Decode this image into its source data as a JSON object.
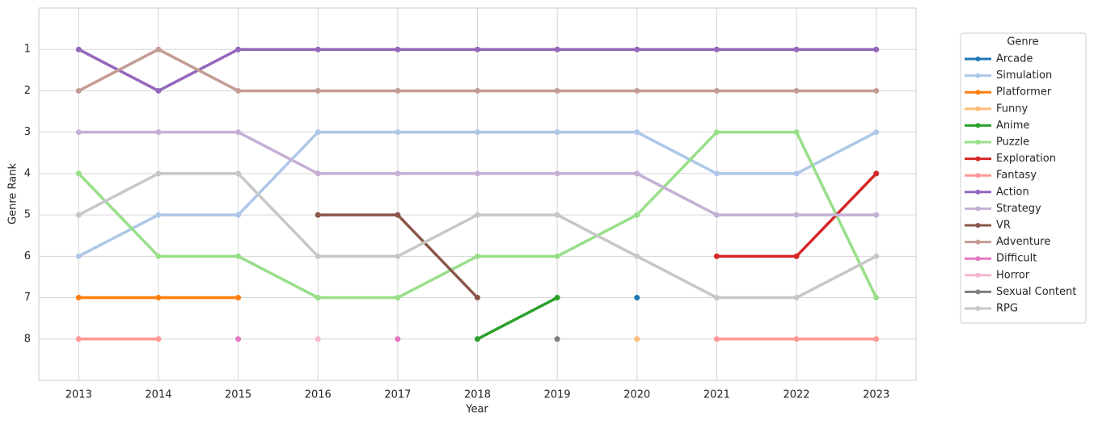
{
  "chart_data": {
    "type": "line",
    "xlabel": "Year",
    "ylabel": "Genre Rank",
    "legend_title": "Genre",
    "legend": "outside right",
    "grid": true,
    "x": [
      2013,
      2014,
      2015,
      2016,
      2017,
      2018,
      2019,
      2020,
      2021,
      2022,
      2023
    ],
    "xlim": [
      2012.5,
      2023.5
    ],
    "xticks": [
      2013,
      2014,
      2015,
      2016,
      2017,
      2018,
      2019,
      2020,
      2021,
      2022,
      2023
    ],
    "ylim": [
      9,
      0
    ],
    "yticks": [
      1,
      2,
      3,
      4,
      5,
      6,
      7,
      8
    ],
    "series": [
      {
        "name": "Arcade",
        "color": "#1f77b4",
        "values": [
          null,
          null,
          null,
          null,
          null,
          null,
          null,
          7,
          null,
          null,
          null
        ]
      },
      {
        "name": "Simulation",
        "color": "#aec7e8",
        "values": [
          6,
          5,
          5,
          3,
          3,
          3,
          3,
          3,
          4,
          4,
          3
        ]
      },
      {
        "name": "Platformer",
        "color": "#ff7f0e",
        "values": [
          7,
          7,
          7,
          null,
          null,
          null,
          null,
          null,
          null,
          null,
          null
        ]
      },
      {
        "name": "Funny",
        "color": "#ffbb78",
        "values": [
          null,
          null,
          null,
          null,
          null,
          null,
          null,
          8,
          null,
          null,
          null
        ]
      },
      {
        "name": "Anime",
        "color": "#2ca02c",
        "values": [
          null,
          null,
          null,
          null,
          null,
          8,
          7,
          null,
          null,
          null,
          null
        ]
      },
      {
        "name": "Puzzle",
        "color": "#98df8a",
        "values": [
          4,
          6,
          6,
          7,
          7,
          6,
          6,
          5,
          3,
          3,
          7
        ]
      },
      {
        "name": "Exploration",
        "color": "#d62728",
        "values": [
          null,
          null,
          null,
          null,
          null,
          null,
          null,
          null,
          6,
          6,
          4
        ]
      },
      {
        "name": "Fantasy",
        "color": "#ff9896",
        "values": [
          8,
          8,
          null,
          null,
          null,
          null,
          null,
          null,
          8,
          8,
          8
        ]
      },
      {
        "name": "Action",
        "color": "#9467bd",
        "values": [
          1,
          2,
          1,
          1,
          1,
          1,
          1,
          1,
          1,
          1,
          1
        ]
      },
      {
        "name": "Strategy",
        "color": "#c5b0d5",
        "values": [
          3,
          3,
          3,
          4,
          4,
          4,
          4,
          4,
          5,
          5,
          5
        ]
      },
      {
        "name": "VR",
        "color": "#8c564b",
        "values": [
          null,
          null,
          null,
          5,
          5,
          7,
          null,
          null,
          null,
          null,
          null
        ]
      },
      {
        "name": "Adventure",
        "color": "#c49c94",
        "values": [
          2,
          1,
          2,
          2,
          2,
          2,
          2,
          2,
          2,
          2,
          2
        ]
      },
      {
        "name": "Difficult",
        "color": "#e377c2",
        "values": [
          null,
          null,
          8,
          null,
          8,
          null,
          null,
          null,
          null,
          null,
          null
        ]
      },
      {
        "name": "Horror",
        "color": "#f7b6d2",
        "values": [
          null,
          null,
          null,
          8,
          null,
          null,
          null,
          null,
          null,
          null,
          null
        ]
      },
      {
        "name": "Sexual Content",
        "color": "#7f7f7f",
        "values": [
          null,
          null,
          null,
          null,
          null,
          null,
          8,
          null,
          null,
          null,
          null
        ]
      },
      {
        "name": "RPG",
        "color": "#c7c7c7",
        "values": [
          5,
          4,
          4,
          6,
          6,
          5,
          5,
          6,
          7,
          7,
          6
        ]
      }
    ]
  }
}
